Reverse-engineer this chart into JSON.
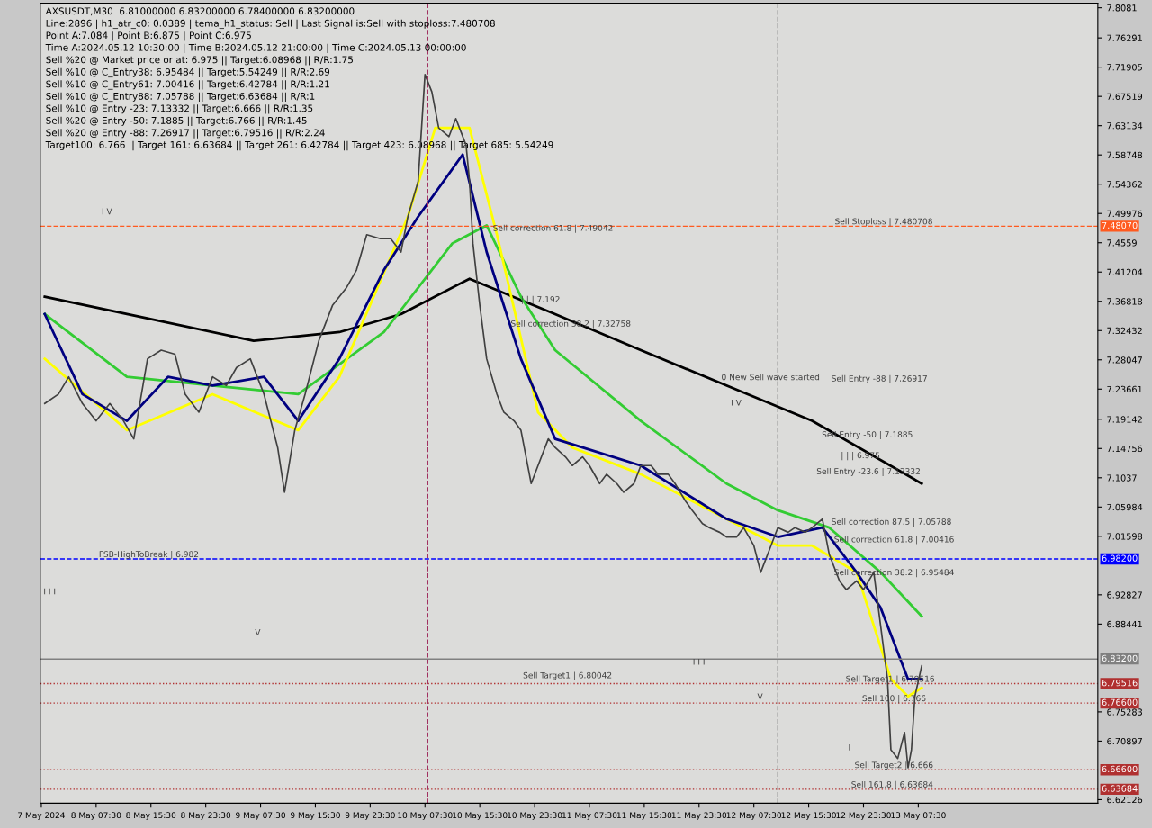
{
  "chart_data": {
    "type": "line",
    "title": "AXSUSDT,M30  6.81000000 6.83200000 6.78400000 6.83200000",
    "annotations": [
      "Line:2896 | h1_atr_c0: 0.0389 | tema_h1_status: Sell | Last Signal is:Sell with stoploss:7.480708",
      "Point A:7.084 | Point B:6.875 | Point C:6.975",
      "Time A:2024.05.12 10:30:00 | Time B:2024.05.12 21:00:00 | Time C:2024.05.13 00:00:00",
      "Sell %20 @ Market price or at: 6.975 || Target:6.08968 || R/R:1.75",
      "Sell %10 @ C_Entry38: 6.95484 || Target:5.54249 || R/R:2.69",
      "Sell %10 @ C_Entry61: 7.00416 || Target:6.42784 || R/R:1.21",
      "Sell %10 @ C_Entry88: 7.05788 || Target:6.63684 || R/R:1",
      "Sell %10 @ Entry -23: 7.13332 || Target:6.666 || R/R:1.35",
      "Sell %20 @ Entry -50: 7.1885 || Target:6.766 || R/R:1.45",
      "Sell %20 @ Entry -88: 7.26917 || Target:6.79516 || R/R:2.24",
      "Target100: 6.766 || Target 161: 6.63684 || Target 261: 6.42784 || Target 423: 6.08968 || Target 685: 5.54249",
      "Sell correction 61.8 | 7.49042",
      "0 New Sell wave started",
      "Sell Entry -88 | 7.26917",
      "Sell Entry -50 | 7.1885",
      "| | | 6.975",
      "Sell Entry -23.6 | 7.13332",
      "Sell correction 87.5 | 7.05788",
      "I V",
      "I I I",
      "V",
      "I I I",
      "I V",
      "I",
      {
        "text": "Sell correction 38.2 | 7.32758",
        "x": "2024-05-10T20:00",
        "y": 7.32758
      },
      {
        "text": "| | | 7.192",
        "x": "2024-05-10T21:30",
        "y": 7.364
      },
      {
        "text": "Sell Stoploss | 7.480708",
        "x": "2024-05-12T19:18",
        "y": 7.480708
      },
      {
        "text": "Sell correction 61.8 | 7.00416",
        "x": "2024-05-12T19:12",
        "y": 7.00416
      },
      {
        "text": "Sell correction 38.2 | 6.95484",
        "x": "2024-05-12T19:12",
        "y": 6.95484
      },
      {
        "text": "Sell Target1 | 6.79516",
        "x": "2024-05-12T20:54",
        "y": 6.79516
      },
      {
        "text": "Sell 100 | 6.766",
        "x": "2024-05-12T23:18",
        "y": 6.766
      },
      {
        "text": "Sell Target2 | 6.666",
        "x": "2024-05-12T22:12",
        "y": 6.666
      },
      {
        "text": "Sell 161.8 | 6.63684",
        "x": "2024-05-12T21:42",
        "y": 6.63684
      },
      {
        "text": "Sell Target1 | 6.80042",
        "x": "2024-05-10T21:48",
        "y": 6.80042
      },
      {
        "text": "FSB-HighToBreak | 6.982",
        "x": "2024-05-08T07:54",
        "y": 6.982
      },
      {
        "text": "V",
        "x": "2024-05-12T08:00",
        "y": 6.769
      }
    ],
    "xlim": [
      "2024-05-07T23:21",
      "2024-05-14T09:42"
    ],
    "xticks": [
      {
        "value": "2024-05-07T23:30",
        "label": "7 May 2024"
      },
      {
        "value": "2024-05-08T07:30",
        "label": "8 May 07:30"
      },
      {
        "value": "2024-05-08T15:30",
        "label": "8 May 15:30"
      },
      {
        "value": "2024-05-08T23:30",
        "label": "8 May 23:30"
      },
      {
        "value": "2024-05-09T07:30",
        "label": "9 May 07:30"
      },
      {
        "value": "2024-05-09T15:30",
        "label": "9 May 15:30"
      },
      {
        "value": "2024-05-09T23:30",
        "label": "9 May 23:30"
      },
      {
        "value": "2024-05-10T07:30",
        "label": "10 May 07:30"
      },
      {
        "value": "2024-05-10T15:30",
        "label": "10 May 15:30"
      },
      {
        "value": "2024-05-10T23:30",
        "label": "10 May 23:30"
      },
      {
        "value": "2024-05-11T07:30",
        "label": "11 May 07:30"
      },
      {
        "value": "2024-05-11T15:30",
        "label": "11 May 15:30"
      },
      {
        "value": "2024-05-11T23:30",
        "label": "11 May 23:30"
      },
      {
        "value": "2024-05-12T07:30",
        "label": "12 May 07:30"
      },
      {
        "value": "2024-05-12T15:30",
        "label": "12 May 15:30"
      },
      {
        "value": "2024-05-12T23:30",
        "label": "12 May 23:30"
      },
      {
        "value": "2024-05-13T07:30",
        "label": "13 May 07:30"
      }
    ],
    "ylim": [
      6.6159,
      7.8148
    ],
    "yticks": [
      7.8081,
      7.76291,
      7.71905,
      7.67519,
      7.63134,
      7.58748,
      7.54362,
      7.49976,
      7.4559,
      7.41204,
      7.36818,
      7.32432,
      7.28047,
      7.23661,
      7.19142,
      7.14756,
      7.1037,
      7.05984,
      7.01598,
      6.92827,
      6.88441,
      6.75283,
      6.70897,
      6.62126
    ],
    "grid": false,
    "legend": false,
    "line_style": "solid",
    "ref_lines": [
      {
        "axis": "y",
        "value": 7.4807,
        "label": "7.48070",
        "color": "#ff5a1f",
        "line_style": "dashed"
      },
      {
        "axis": "y",
        "value": 6.982,
        "label": "6.98200",
        "color": "#0000ff",
        "line_style": "dashed"
      },
      {
        "axis": "y",
        "value": 6.832,
        "label": "6.83200",
        "color": "#808080",
        "line_style": "solid"
      },
      {
        "axis": "y",
        "value": 6.79516,
        "label": "6.79516",
        "color": "#b03030",
        "line_style": "dotted"
      },
      {
        "axis": "y",
        "value": 6.766,
        "label": "6.76600",
        "color": "#b03030",
        "line_style": "dotted"
      },
      {
        "axis": "y",
        "value": 6.666,
        "label": "6.66600",
        "color": "#b03030",
        "line_style": "dotted"
      },
      {
        "axis": "y",
        "value": 6.63684,
        "label": "6.63684",
        "color": "#b03030",
        "line_style": "dotted"
      },
      {
        "axis": "x",
        "value": "2024-05-10T07:54",
        "color": "#a03060",
        "line_style": "dashed"
      },
      {
        "axis": "x",
        "value": "2024-05-12T11:00",
        "color": "#808080",
        "line_style": "dashed"
      }
    ],
    "series": [
      {
        "color": "#404040",
        "x": [
          "2024-05-08T00:00",
          "2024-05-08T02:00",
          "2024-05-08T03:30",
          "2024-05-08T05:30",
          "2024-05-08T07:30",
          "2024-05-08T09:30",
          "2024-05-08T11:30",
          "2024-05-08T13:00",
          "2024-05-08T15:00",
          "2024-05-08T17:00",
          "2024-05-08T19:00",
          "2024-05-08T20:30",
          "2024-05-08T22:30",
          "2024-05-09T00:30",
          "2024-05-09T02:30",
          "2024-05-09T04:00",
          "2024-05-09T06:00",
          "2024-05-09T08:00",
          "2024-05-09T10:00",
          "2024-05-09T11:00",
          "2024-05-09T12:30",
          "2024-05-09T14:00",
          "2024-05-09T16:00",
          "2024-05-09T18:00",
          "2024-05-09T20:00",
          "2024-05-09T21:30",
          "2024-05-09T23:00",
          "2024-05-10T01:00",
          "2024-05-10T02:30",
          "2024-05-10T04:00",
          "2024-05-10T05:00",
          "2024-05-10T06:30",
          "2024-05-10T07:30",
          "2024-05-10T08:30",
          "2024-05-10T09:30",
          "2024-05-10T11:00",
          "2024-05-10T12:00",
          "2024-05-10T13:30",
          "2024-05-10T14:00",
          "2024-05-10T14:30",
          "2024-05-10T15:30",
          "2024-05-10T16:30",
          "2024-05-10T18:00",
          "2024-05-10T19:00",
          "2024-05-10T20:30",
          "2024-05-10T21:30",
          "2024-05-10T23:00",
          "2024-05-11T00:00",
          "2024-05-11T01:30",
          "2024-05-11T02:30",
          "2024-05-11T04:00",
          "2024-05-11T05:00",
          "2024-05-11T06:30",
          "2024-05-11T07:30",
          "2024-05-11T09:00",
          "2024-05-11T10:00",
          "2024-05-11T11:30",
          "2024-05-11T12:30",
          "2024-05-11T14:00",
          "2024-05-11T15:00",
          "2024-05-11T16:30",
          "2024-05-11T17:30",
          "2024-05-11T19:00",
          "2024-05-11T20:00",
          "2024-05-11T21:30",
          "2024-05-11T22:30",
          "2024-05-12T00:00",
          "2024-05-12T01:00",
          "2024-05-12T02:30",
          "2024-05-12T03:30",
          "2024-05-12T05:00",
          "2024-05-12T06:00",
          "2024-05-12T07:30",
          "2024-05-12T08:30",
          "2024-05-12T10:00",
          "2024-05-12T11:00",
          "2024-05-12T12:30",
          "2024-05-12T13:30",
          "2024-05-12T15:00",
          "2024-05-12T16:00",
          "2024-05-12T17:30",
          "2024-05-12T18:30",
          "2024-05-12T20:00",
          "2024-05-12T21:00",
          "2024-05-12T22:30",
          "2024-05-12T23:30",
          "2024-05-13T01:00",
          "2024-05-13T02:00",
          "2024-05-13T03:00",
          "2024-05-13T03:30",
          "2024-05-13T04:30",
          "2024-05-13T05:30",
          "2024-05-13T06:00",
          "2024-05-13T06:30",
          "2024-05-13T07:00",
          "2024-05-13T08:00"
        ],
        "values": [
          7.215,
          7.229,
          7.255,
          7.215,
          7.189,
          7.215,
          7.189,
          7.162,
          7.282,
          7.295,
          7.289,
          7.229,
          7.202,
          7.255,
          7.242,
          7.269,
          7.282,
          7.229,
          7.149,
          7.082,
          7.175,
          7.229,
          7.309,
          7.362,
          7.388,
          7.415,
          7.468,
          7.462,
          7.462,
          7.442,
          7.495,
          7.548,
          7.708,
          7.682,
          7.628,
          7.615,
          7.642,
          7.602,
          7.548,
          7.455,
          7.362,
          7.282,
          7.229,
          7.202,
          7.189,
          7.175,
          7.095,
          7.122,
          7.162,
          7.149,
          7.135,
          7.122,
          7.135,
          7.122,
          7.095,
          7.109,
          7.095,
          7.082,
          7.095,
          7.122,
          7.122,
          7.109,
          7.109,
          7.095,
          7.069,
          7.055,
          7.035,
          7.029,
          7.022,
          7.015,
          7.015,
          7.029,
          7.002,
          6.962,
          7.002,
          7.029,
          7.022,
          7.029,
          7.022,
          7.029,
          7.042,
          6.989,
          6.949,
          6.936,
          6.949,
          6.936,
          6.962,
          6.882,
          6.802,
          6.696,
          6.683,
          6.722,
          6.669,
          6.696,
          6.776,
          6.822
        ]
      },
      {
        "color": "#000000",
        "x": [
          "2024-05-08T00:00",
          "2024-05-08T12:00",
          "2024-05-09T06:30",
          "2024-05-09T19:00",
          "2024-05-10T04:00",
          "2024-05-10T14:00",
          "2024-05-11T02:30",
          "2024-05-11T15:00",
          "2024-05-12T03:30",
          "2024-05-12T16:00",
          "2024-05-13T08:00"
        ],
        "values": [
          7.375,
          7.349,
          7.309,
          7.322,
          7.349,
          7.402,
          7.349,
          7.295,
          7.242,
          7.189,
          7.095
        ]
      },
      {
        "color": "#33cc33",
        "x": [
          "2024-05-08T00:00",
          "2024-05-08T12:00",
          "2024-05-09T00:30",
          "2024-05-09T13:00",
          "2024-05-10T01:30",
          "2024-05-10T11:30",
          "2024-05-10T16:30",
          "2024-05-10T21:30",
          "2024-05-11T02:30",
          "2024-05-11T15:00",
          "2024-05-12T03:30",
          "2024-05-12T11:00",
          "2024-05-12T18:30",
          "2024-05-13T02:00",
          "2024-05-13T08:00"
        ],
        "values": [
          7.349,
          7.255,
          7.242,
          7.229,
          7.322,
          7.455,
          7.482,
          7.375,
          7.295,
          7.189,
          7.095,
          7.055,
          7.029,
          6.962,
          6.896
        ]
      },
      {
        "color": "#ffff00",
        "x": [
          "2024-05-08T00:00",
          "2024-05-08T12:00",
          "2024-05-09T00:30",
          "2024-05-09T13:00",
          "2024-05-09T19:00",
          "2024-05-10T05:00",
          "2024-05-10T09:00",
          "2024-05-10T14:00",
          "2024-05-10T18:00",
          "2024-05-11T00:00",
          "2024-05-11T05:00",
          "2024-05-11T15:00",
          "2024-05-12T03:30",
          "2024-05-12T11:00",
          "2024-05-12T16:00",
          "2024-05-12T22:30",
          "2024-05-13T03:30",
          "2024-05-13T06:00",
          "2024-05-13T08:00"
        ],
        "values": [
          7.282,
          7.175,
          7.229,
          7.175,
          7.255,
          7.495,
          7.628,
          7.628,
          7.468,
          7.202,
          7.149,
          7.109,
          7.042,
          7.002,
          7.002,
          6.962,
          6.802,
          6.776,
          6.789
        ]
      },
      {
        "color": "#000080",
        "x": [
          "2024-05-08T00:00",
          "2024-05-08T05:30",
          "2024-05-08T12:00",
          "2024-05-08T18:00",
          "2024-05-09T00:30",
          "2024-05-09T08:00",
          "2024-05-09T13:00",
          "2024-05-09T19:00",
          "2024-05-10T01:30",
          "2024-05-10T06:30",
          "2024-05-10T13:00",
          "2024-05-10T16:30",
          "2024-05-10T21:30",
          "2024-05-11T02:30",
          "2024-05-11T15:00",
          "2024-05-12T03:30",
          "2024-05-12T11:00",
          "2024-05-12T17:30",
          "2024-05-12T22:30",
          "2024-05-13T02:00",
          "2024-05-13T06:00",
          "2024-05-13T08:00"
        ],
        "values": [
          7.349,
          7.229,
          7.189,
          7.255,
          7.242,
          7.255,
          7.189,
          7.282,
          7.415,
          7.495,
          7.588,
          7.442,
          7.282,
          7.162,
          7.122,
          7.042,
          7.015,
          7.029,
          6.962,
          6.909,
          6.802,
          6.802
        ]
      }
    ]
  }
}
